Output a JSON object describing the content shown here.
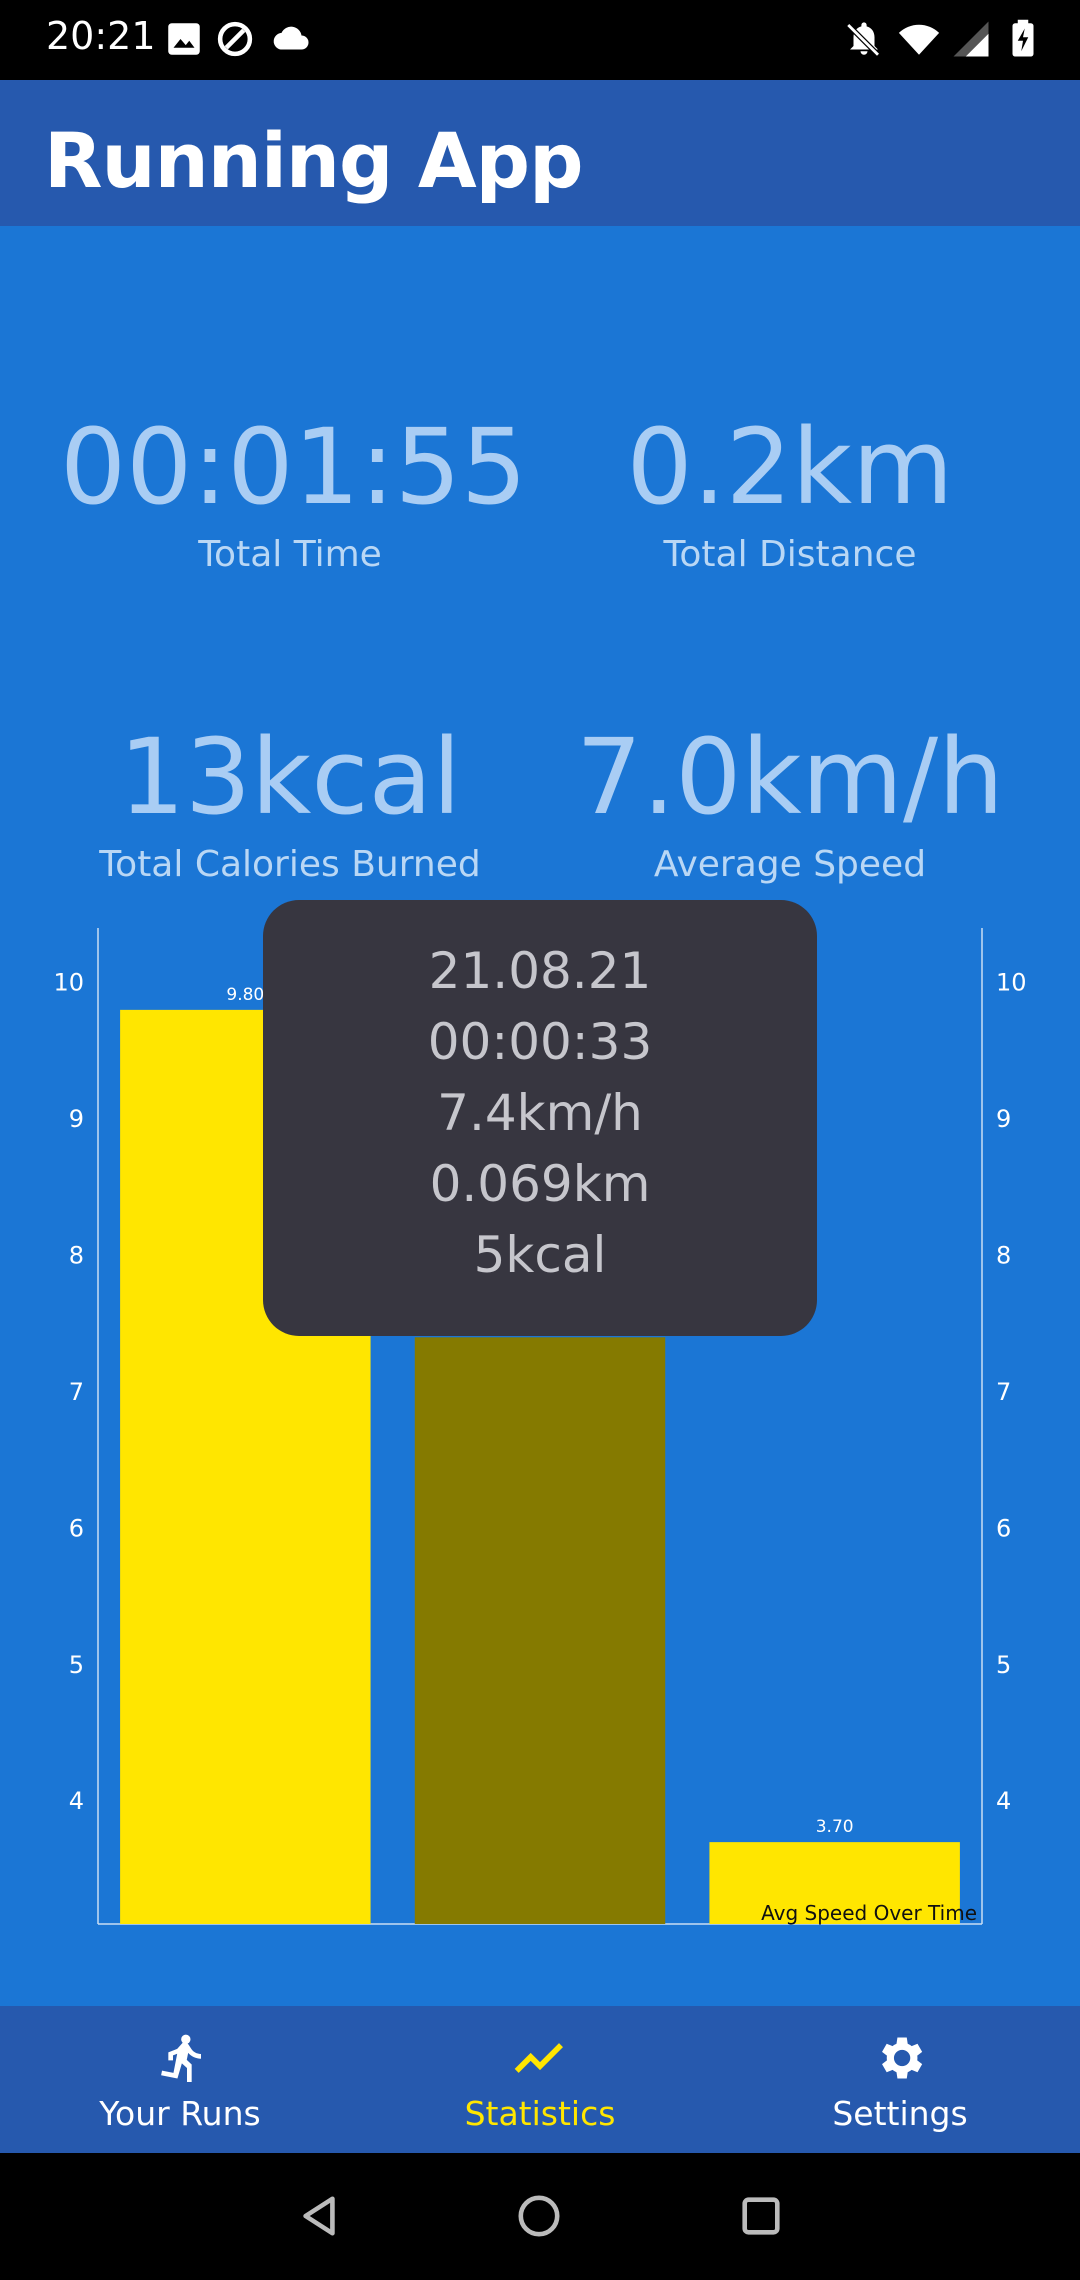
{
  "status_bar": {
    "time": "20:21",
    "left_icons": [
      "image-icon",
      "data-saver-icon",
      "cloud-icon"
    ],
    "right_icons": [
      "notifications-off-icon",
      "wifi-icon",
      "signal-icon",
      "battery-charging-icon"
    ]
  },
  "app_bar": {
    "title": "Running App"
  },
  "stats": {
    "total_time": {
      "value": "00:01:55",
      "label": "Total Time"
    },
    "total_distance": {
      "value": "0.2km",
      "label": "Total Distance"
    },
    "total_calories": {
      "value": "13kcal",
      "label": "Total Calories Burned"
    },
    "average_speed": {
      "value": "7.0km/h",
      "label": "Average Speed"
    }
  },
  "chart_data": {
    "type": "bar",
    "series": [
      {
        "values": [
          9.8,
          7.4,
          3.7
        ]
      }
    ],
    "value_labels": [
      "9.80",
      "3.70"
    ],
    "ylim": [
      3.1,
      10.4
    ],
    "y_ticks_left": [
      "10",
      "9",
      "8",
      "7",
      "6",
      "5",
      "4"
    ],
    "y_ticks_right": [
      "10",
      "9",
      "8",
      "7",
      "6",
      "5",
      "4"
    ],
    "description_label": "Avg Speed Over Time",
    "highlighted_index": 1,
    "colors": {
      "bar": "#FFE600",
      "bar_highlighted": "#857A00",
      "axis": "#C9DDF4",
      "tick_text": "#FFFFFF"
    },
    "grid": false
  },
  "tooltip": {
    "date": "21.08.21",
    "time": "00:00:33",
    "speed": "7.4km/h",
    "distance": "0.069km",
    "calories": "5kcal"
  },
  "bottom_nav": {
    "items": [
      {
        "label": "Your Runs",
        "icon": "running-person-icon",
        "active": false
      },
      {
        "label": "Statistics",
        "icon": "trending-up-icon",
        "active": true
      },
      {
        "label": "Settings",
        "icon": "gear-icon",
        "active": false
      }
    ],
    "active_color": "#FFE600"
  },
  "system_nav": {
    "icons": [
      "back-icon",
      "home-icon",
      "recents-icon"
    ]
  },
  "colors": {
    "app_bar": "#2659AE",
    "content_bg": "#1B76D5",
    "stat_text": "#A9CDF4",
    "tooltip_bg": "#373640"
  }
}
